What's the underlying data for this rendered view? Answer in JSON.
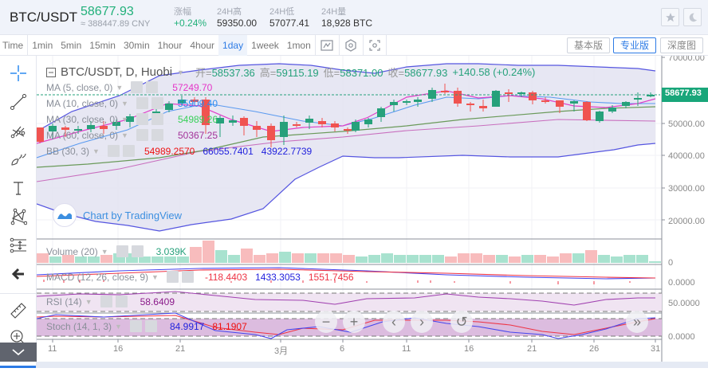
{
  "header": {
    "pair": "BTC/USDT",
    "price": "58677.93",
    "cny": "≈ 388447.89 CNY",
    "stats": [
      {
        "label": "涨幅",
        "value": "+0.24%",
        "up": true
      },
      {
        "label": "24H高",
        "value": "59350.00"
      },
      {
        "label": "24H低",
        "value": "57077.41"
      },
      {
        "label": "24H量",
        "value": "18,928 BTC"
      }
    ],
    "favorite_icon": "star-icon",
    "theme_icon": "moon-icon"
  },
  "toolbar": {
    "time_label": "Time",
    "intervals": [
      "1min",
      "5min",
      "15min",
      "30min",
      "1hour",
      "4hour",
      "1day",
      "1week",
      "1mon"
    ],
    "active_interval": "1day",
    "icons": [
      "indicator-icon",
      "settings-hex-icon",
      "screenshot-icon"
    ],
    "views": [
      {
        "label": "基本版",
        "active": false
      },
      {
        "label": "专业版",
        "active": true
      },
      {
        "label": "深度图",
        "active": false
      }
    ]
  },
  "sidebar": {
    "tools": [
      "crosshair-icon",
      "trend-line-icon",
      "pitchfork-icon",
      "brush-icon",
      "text-icon",
      "pattern-icon",
      "measure-lines-icon",
      "back-arrow-icon",
      "ruler-icon",
      "zoom-in-icon"
    ],
    "collapse_icon": "chevron-down-icon"
  },
  "chart": {
    "symbol_title": "BTC/USDT, D, Huobi",
    "ohlc": {
      "open_label": "开=",
      "open": "58537.36",
      "high_label": "高=",
      "high": "59115.19",
      "low_label": "低=",
      "low": "58371.00",
      "close_label": "收=",
      "close": "58677.93",
      "change": "+140.58 (+0.24%)"
    },
    "last_price_tag": "58677.93",
    "indicators": [
      {
        "name": "MA (5, close, 0)",
        "values": [
          {
            "v": "57249.70",
            "color": "#e535c8"
          }
        ]
      },
      {
        "name": "MA (10, close, 0)",
        "values": [
          {
            "v": "55909.40",
            "color": "#2d8cf0"
          }
        ]
      },
      {
        "name": "MA (30, close, 0)",
        "values": [
          {
            "v": "54989.26",
            "color": "#39d05a"
          }
        ]
      },
      {
        "name": "MA (60, close, 0)",
        "values": [
          {
            "v": "50367.25",
            "color": "#a3339a"
          }
        ]
      },
      {
        "name": "BB (30, 3)",
        "values": [
          {
            "v": "54989.2570",
            "color": "#ee1111"
          },
          {
            "v": "66055.7401",
            "color": "#2222dd"
          },
          {
            "v": "43922.7739",
            "color": "#2222dd"
          }
        ]
      }
    ],
    "y_axis": [
      "70000.00",
      "50000.00",
      "40000.00",
      "30000.00",
      "20000.00"
    ],
    "volume": {
      "name": "Volume (20)",
      "value": "3.039K",
      "axis": "0"
    },
    "macd": {
      "name": "MACD (12, 26, close, 9)",
      "values": [
        "-118.4403",
        "1433.3053",
        "1551.7456"
      ],
      "axis": "0.0000"
    },
    "rsi": {
      "name": "RSI (14)",
      "value": "58.6409",
      "axis": "50.0000"
    },
    "stoch": {
      "name": "Stoch (14, 1, 3)",
      "values": [
        "84.9917",
        "81.1907"
      ],
      "axis": "0.0000"
    },
    "x_axis": [
      "11",
      "16",
      "21",
      "3月",
      "6",
      "11",
      "16",
      "21",
      "26",
      "31"
    ],
    "watermark": "Chart by TradingView",
    "nav": [
      "zoom-out-icon",
      "zoom-in-icon",
      "scroll-left-icon",
      "scroll-right-icon",
      "reset-icon",
      "go-to-latest-icon"
    ]
  },
  "colors": {
    "up": "#26a17b",
    "down": "#f05350",
    "accent": "#2d7be5"
  }
}
